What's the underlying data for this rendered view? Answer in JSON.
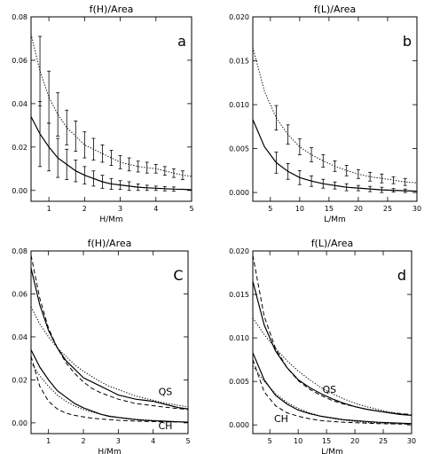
{
  "chart_data": [
    {
      "type": "line",
      "title": "f(H)/Area",
      "xlabel": "H/Mm",
      "ylabel": "",
      "xlim": [
        0.5,
        5
      ],
      "ylim": [
        -0.005,
        0.08
      ],
      "xticks": [
        1,
        2,
        3,
        4,
        5
      ],
      "yticks": [
        0.0,
        0.02,
        0.04,
        0.06,
        0.08
      ],
      "ytick_labels": [
        "0.00",
        "0.02",
        "0.04",
        "0.06",
        "0.08"
      ],
      "panel_label": "a",
      "grid": false,
      "series": [
        {
          "style": "dotted",
          "x": [
            0.5,
            0.75,
            1.0,
            1.25,
            1.5,
            1.75,
            2.0,
            2.25,
            2.5,
            2.75,
            3.0,
            3.25,
            3.5,
            3.75,
            4.0,
            4.25,
            4.5,
            4.75,
            5.0
          ],
          "y": [
            0.072,
            0.055,
            0.043,
            0.035,
            0.029,
            0.025,
            0.021,
            0.019,
            0.017,
            0.015,
            0.013,
            0.012,
            0.011,
            0.0105,
            0.01,
            0.009,
            0.008,
            0.007,
            0.0065
          ]
        },
        {
          "style": "solid",
          "x": [
            0.5,
            0.75,
            1.0,
            1.25,
            1.5,
            1.75,
            2.0,
            2.25,
            2.5,
            2.75,
            3.0,
            3.25,
            3.5,
            3.75,
            4.0,
            4.25,
            4.5,
            4.75,
            5.0
          ],
          "y": [
            0.034,
            0.026,
            0.02,
            0.015,
            0.012,
            0.009,
            0.007,
            0.0055,
            0.004,
            0.003,
            0.0025,
            0.002,
            0.0015,
            0.0012,
            0.001,
            0.0008,
            0.0006,
            0.0005,
            0.0003
          ]
        }
      ],
      "error_bars": [
        {
          "series": "dotted",
          "x": [
            0.75,
            1.0,
            1.25,
            1.5,
            1.75,
            2.0,
            2.25,
            2.5,
            2.75,
            3.0,
            3.25,
            3.5,
            3.75,
            4.0,
            4.25,
            4.5,
            4.75
          ],
          "y": [
            0.055,
            0.043,
            0.035,
            0.029,
            0.025,
            0.021,
            0.019,
            0.017,
            0.015,
            0.013,
            0.012,
            0.011,
            0.0105,
            0.01,
            0.009,
            0.008,
            0.007
          ],
          "err": [
            0.016,
            0.012,
            0.01,
            0.008,
            0.007,
            0.006,
            0.005,
            0.004,
            0.0035,
            0.003,
            0.003,
            0.0025,
            0.0025,
            0.002,
            0.002,
            0.002,
            0.002
          ]
        },
        {
          "series": "solid",
          "x": [
            0.75,
            1.0,
            1.25,
            1.5,
            1.75,
            2.0,
            2.25,
            2.5,
            2.75,
            3.0,
            3.25,
            3.5,
            3.75,
            4.0,
            4.25,
            4.5
          ],
          "y": [
            0.026,
            0.02,
            0.015,
            0.012,
            0.009,
            0.007,
            0.0055,
            0.004,
            0.003,
            0.0025,
            0.002,
            0.0015,
            0.0012,
            0.001,
            0.0008,
            0.0006
          ],
          "err": [
            0.015,
            0.011,
            0.009,
            0.007,
            0.005,
            0.004,
            0.0035,
            0.003,
            0.0025,
            0.002,
            0.002,
            0.0015,
            0.0012,
            0.001,
            0.001,
            0.001
          ]
        }
      ]
    },
    {
      "type": "line",
      "title": "f(L)/Area",
      "xlabel": "L/Mm",
      "ylabel": "",
      "xlim": [
        2,
        30
      ],
      "ylim": [
        -0.001,
        0.02
      ],
      "xticks": [
        5,
        10,
        15,
        20,
        25,
        30
      ],
      "yticks": [
        0.0,
        0.005,
        0.01,
        0.015,
        0.02
      ],
      "ytick_labels": [
        "0.000",
        "0.005",
        "0.010",
        "0.015",
        "0.020"
      ],
      "panel_label": "b",
      "grid": false,
      "series": [
        {
          "style": "dotted",
          "x": [
            2,
            4,
            6,
            8,
            10,
            12,
            14,
            16,
            18,
            20,
            22,
            24,
            26,
            28,
            30
          ],
          "y": [
            0.0165,
            0.0115,
            0.0085,
            0.0066,
            0.0052,
            0.0043,
            0.0036,
            0.003,
            0.0025,
            0.0021,
            0.0018,
            0.0016,
            0.0014,
            0.0012,
            0.0011
          ]
        },
        {
          "style": "solid",
          "x": [
            2,
            4,
            6,
            8,
            10,
            12,
            14,
            16,
            18,
            20,
            22,
            24,
            26,
            28,
            30
          ],
          "y": [
            0.0083,
            0.0052,
            0.0034,
            0.0024,
            0.0017,
            0.0013,
            0.001,
            0.0008,
            0.0006,
            0.0005,
            0.0004,
            0.0003,
            0.00025,
            0.0002,
            0.00015
          ]
        }
      ],
      "error_bars": [
        {
          "series": "dotted",
          "x": [
            6,
            8,
            10,
            12,
            14,
            16,
            18,
            20,
            22,
            24,
            26,
            28
          ],
          "y": [
            0.0085,
            0.0066,
            0.0052,
            0.0043,
            0.0036,
            0.003,
            0.0025,
            0.0021,
            0.0018,
            0.0016,
            0.0014,
            0.0012
          ],
          "err": [
            0.0014,
            0.0011,
            0.0009,
            0.0008,
            0.0007,
            0.0006,
            0.0006,
            0.0005,
            0.0005,
            0.0005,
            0.0004,
            0.0004
          ]
        },
        {
          "series": "solid",
          "x": [
            6,
            8,
            10,
            12,
            14,
            16,
            18,
            20,
            22,
            24,
            26,
            28
          ],
          "y": [
            0.0034,
            0.0024,
            0.0017,
            0.0013,
            0.001,
            0.0008,
            0.0006,
            0.0005,
            0.0004,
            0.0003,
            0.00025,
            0.0002
          ],
          "err": [
            0.0012,
            0.0009,
            0.0008,
            0.0006,
            0.0005,
            0.0004,
            0.0004,
            0.0003,
            0.0003,
            0.0003,
            0.0002,
            0.0002
          ]
        }
      ]
    },
    {
      "type": "line",
      "title": "f(H)/Area",
      "xlabel": "H/Mm",
      "ylabel": "",
      "xlim": [
        0.5,
        5
      ],
      "ylim": [
        -0.005,
        0.08
      ],
      "xticks": [
        1,
        2,
        3,
        4,
        5
      ],
      "yticks": [
        0.0,
        0.02,
        0.04,
        0.06,
        0.08
      ],
      "ytick_labels": [
        "0.00",
        "0.02",
        "0.04",
        "0.06",
        "0.08"
      ],
      "panel_label": "C",
      "grid": false,
      "curve_labels": [
        {
          "text": "QS",
          "x": 4.35,
          "y": 0.013
        },
        {
          "text": "CH",
          "x": 4.35,
          "y": -0.003
        }
      ],
      "series": [
        {
          "style": "solid",
          "x": [
            0.5,
            0.75,
            1.0,
            1.25,
            1.5,
            1.75,
            2.0,
            2.25,
            2.5,
            2.75,
            3.0,
            3.25,
            3.5,
            3.75,
            4.0,
            4.25,
            4.5,
            4.75,
            5.0
          ],
          "y": [
            0.072,
            0.055,
            0.043,
            0.035,
            0.029,
            0.025,
            0.021,
            0.019,
            0.017,
            0.015,
            0.013,
            0.012,
            0.011,
            0.0105,
            0.01,
            0.009,
            0.008,
            0.007,
            0.0065
          ]
        },
        {
          "style": "dashed",
          "x": [
            0.5,
            0.75,
            1.0,
            1.25,
            1.5,
            1.75,
            2.0,
            2.25,
            2.5,
            2.75,
            3.0,
            3.25,
            3.5,
            3.75,
            4.0,
            4.25,
            4.5,
            4.75,
            5.0
          ],
          "y": [
            0.078,
            0.058,
            0.044,
            0.035,
            0.028,
            0.023,
            0.019,
            0.016,
            0.014,
            0.0125,
            0.011,
            0.01,
            0.009,
            0.0085,
            0.008,
            0.0075,
            0.007,
            0.0066,
            0.0062
          ]
        },
        {
          "style": "dotted",
          "x": [
            0.5,
            0.75,
            1.0,
            1.25,
            1.5,
            1.75,
            2.0,
            2.25,
            2.5,
            2.75,
            3.0,
            3.25,
            3.5,
            3.75,
            4.0,
            4.25,
            4.5,
            4.75,
            5.0
          ],
          "y": [
            0.054,
            0.046,
            0.04,
            0.035,
            0.031,
            0.027,
            0.024,
            0.0215,
            0.019,
            0.017,
            0.0155,
            0.014,
            0.0125,
            0.0115,
            0.0105,
            0.0095,
            0.0088,
            0.0081,
            0.0075
          ]
        },
        {
          "style": "solid",
          "x": [
            0.5,
            0.75,
            1.0,
            1.25,
            1.5,
            1.75,
            2.0,
            2.25,
            2.5,
            2.75,
            3.0,
            3.25,
            3.5,
            3.75,
            4.0,
            4.25,
            4.5,
            4.75,
            5.0
          ],
          "y": [
            0.034,
            0.026,
            0.02,
            0.015,
            0.012,
            0.009,
            0.007,
            0.0055,
            0.004,
            0.003,
            0.0025,
            0.002,
            0.0015,
            0.0012,
            0.001,
            0.0008,
            0.0006,
            0.0005,
            0.0003
          ]
        },
        {
          "style": "dashed",
          "x": [
            0.5,
            0.75,
            1.0,
            1.25,
            1.5,
            1.75,
            2.0,
            2.25,
            2.5,
            2.75,
            3.0,
            3.25,
            3.5,
            3.75,
            4.0,
            4.25,
            4.5,
            4.75,
            5.0
          ],
          "y": [
            0.031,
            0.017,
            0.01,
            0.0065,
            0.0045,
            0.0035,
            0.0028,
            0.0022,
            0.0018,
            0.0015,
            0.0012,
            0.001,
            0.0008,
            0.0007,
            0.0006,
            0.0005,
            0.0004,
            0.0004,
            0.0003
          ]
        },
        {
          "style": "dotted",
          "x": [
            0.5,
            0.75,
            1.0,
            1.25,
            1.5,
            1.75,
            2.0,
            2.25,
            2.5,
            2.75,
            3.0,
            3.25,
            3.5,
            3.75,
            4.0,
            4.25,
            4.5,
            4.75,
            5.0
          ],
          "y": [
            0.028,
            0.022,
            0.017,
            0.013,
            0.01,
            0.0078,
            0.0062,
            0.005,
            0.004,
            0.0032,
            0.0026,
            0.0021,
            0.0017,
            0.0014,
            0.0011,
            0.0009,
            0.0007,
            0.0005,
            0.0004
          ]
        }
      ]
    },
    {
      "type": "line",
      "title": "f(L)/Area",
      "xlabel": "L/Mm",
      "ylabel": "",
      "xlim": [
        2,
        30
      ],
      "ylim": [
        -0.001,
        0.02
      ],
      "xticks": [
        5,
        10,
        15,
        20,
        25,
        30
      ],
      "yticks": [
        0.0,
        0.005,
        0.01,
        0.015,
        0.02
      ],
      "ytick_labels": [
        "0.000",
        "0.005",
        "0.010",
        "0.015",
        "0.020"
      ],
      "panel_label": "d",
      "grid": false,
      "curve_labels": [
        {
          "text": "QS",
          "x": 15.5,
          "y": 0.0037
        },
        {
          "text": "CH",
          "x": 7,
          "y": 0.0003
        }
      ],
      "series": [
        {
          "style": "solid",
          "x": [
            2,
            4,
            6,
            8,
            10,
            12,
            14,
            16,
            18,
            20,
            22,
            24,
            26,
            28,
            30
          ],
          "y": [
            0.0165,
            0.0115,
            0.0085,
            0.0066,
            0.0052,
            0.0043,
            0.0036,
            0.003,
            0.0025,
            0.0021,
            0.0018,
            0.0016,
            0.0014,
            0.0012,
            0.0011
          ]
        },
        {
          "style": "dashed",
          "x": [
            2,
            4,
            6,
            8,
            10,
            12,
            14,
            16,
            18,
            20,
            22,
            24,
            26,
            28,
            30
          ],
          "y": [
            0.0195,
            0.0125,
            0.0088,
            0.0066,
            0.0051,
            0.0041,
            0.0034,
            0.0028,
            0.0024,
            0.0021,
            0.0018,
            0.0016,
            0.0014,
            0.0013,
            0.0012
          ]
        },
        {
          "style": "dotted",
          "x": [
            2,
            4,
            6,
            8,
            10,
            12,
            14,
            16,
            18,
            20,
            22,
            24,
            26,
            28,
            30
          ],
          "y": [
            0.0123,
            0.0104,
            0.0088,
            0.0074,
            0.0062,
            0.0052,
            0.0043,
            0.0036,
            0.003,
            0.0025,
            0.0021,
            0.0018,
            0.0015,
            0.0013,
            0.0011
          ]
        },
        {
          "style": "solid",
          "x": [
            2,
            4,
            6,
            8,
            10,
            12,
            14,
            16,
            18,
            20,
            22,
            24,
            26,
            28,
            30
          ],
          "y": [
            0.0083,
            0.0052,
            0.0034,
            0.0024,
            0.0017,
            0.0013,
            0.001,
            0.0008,
            0.0006,
            0.0005,
            0.0004,
            0.0003,
            0.00025,
            0.0002,
            0.00015
          ]
        },
        {
          "style": "dashed",
          "x": [
            2,
            4,
            6,
            8,
            10,
            12,
            14,
            16,
            18,
            20,
            22,
            24,
            26,
            28,
            30
          ],
          "y": [
            0.0075,
            0.0038,
            0.0022,
            0.0014,
            0.001,
            0.0007,
            0.0005,
            0.0004,
            0.0003,
            0.00025,
            0.0002,
            0.00015,
            0.00012,
            0.0001,
            0.0001
          ]
        },
        {
          "style": "dotted",
          "x": [
            2,
            4,
            6,
            8,
            10,
            12,
            14,
            16,
            18,
            20,
            22,
            24,
            26,
            28,
            30
          ],
          "y": [
            0.0068,
            0.005,
            0.0036,
            0.0026,
            0.0019,
            0.0014,
            0.001,
            0.00075,
            0.00055,
            0.0004,
            0.0003,
            0.00022,
            0.00016,
            0.00012,
            0.0001
          ]
        }
      ]
    }
  ]
}
